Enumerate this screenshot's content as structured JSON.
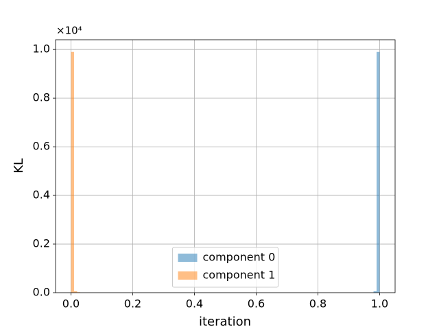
{
  "chart_data": {
    "type": "histogram",
    "xlabel": "iteration",
    "ylabel": "KL",
    "offset_label": "×10⁴",
    "xlim": [
      -0.05,
      1.05
    ],
    "ylim": [
      0,
      10400
    ],
    "xticks": [
      {
        "value": 0,
        "label": "0.0"
      },
      {
        "value": 0.2,
        "label": "0.2"
      },
      {
        "value": 0.4,
        "label": "0.4"
      },
      {
        "value": 0.6,
        "label": "0.6"
      },
      {
        "value": 0.8,
        "label": "0.8"
      },
      {
        "value": 1,
        "label": "1.0"
      }
    ],
    "yticks": [
      {
        "value": 0,
        "label": "0.0"
      },
      {
        "value": 2000,
        "label": "0.2"
      },
      {
        "value": 4000,
        "label": "0.4"
      },
      {
        "value": 6000,
        "label": "0.6"
      },
      {
        "value": 8000,
        "label": "0.8"
      },
      {
        "value": 10000,
        "label": "1.0"
      }
    ],
    "grid": true,
    "legend": "lower center",
    "series": [
      {
        "name": "component 0",
        "color": "#1f77b4",
        "bins": [
          0.98,
          0.99,
          1.0
        ],
        "values": [
          60,
          9900
        ]
      },
      {
        "name": "component 1",
        "color": "#ff7f0e",
        "bins": [
          0,
          0.01,
          0.02,
          0.03
        ],
        "values": [
          9900,
          60,
          20
        ]
      }
    ]
  }
}
